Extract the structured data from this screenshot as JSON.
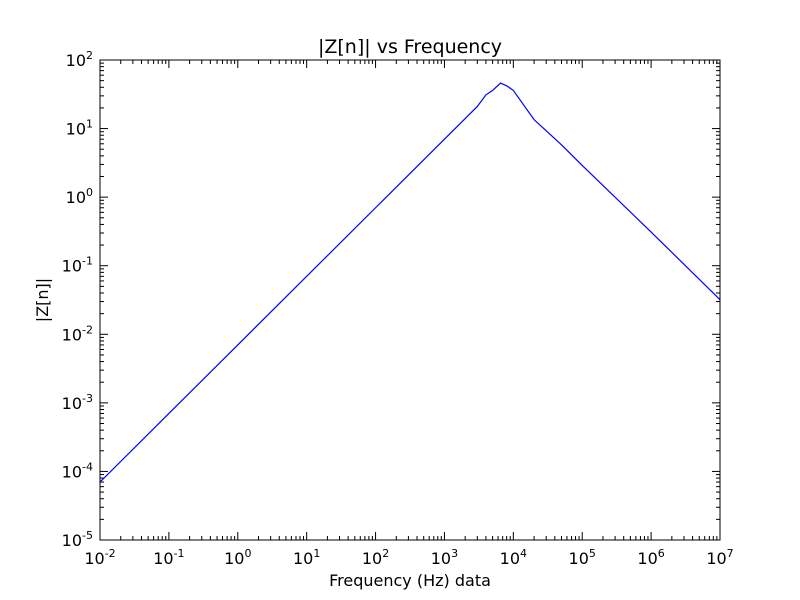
{
  "chart_data": {
    "type": "line",
    "title": "|Z[n]| vs Frequency",
    "xlabel": "Frequency (Hz) data",
    "ylabel": "|Z[n]|",
    "xscale": "log",
    "yscale": "log",
    "xlim": [
      0.01,
      10000000
    ],
    "ylim": [
      1e-05,
      100
    ],
    "grid": false,
    "x_ticks": [
      {
        "base": "10",
        "exp": "-2"
      },
      {
        "base": "10",
        "exp": "-1"
      },
      {
        "base": "10",
        "exp": "0"
      },
      {
        "base": "10",
        "exp": "1"
      },
      {
        "base": "10",
        "exp": "2"
      },
      {
        "base": "10",
        "exp": "3"
      },
      {
        "base": "10",
        "exp": "4"
      },
      {
        "base": "10",
        "exp": "5"
      },
      {
        "base": "10",
        "exp": "6"
      },
      {
        "base": "10",
        "exp": "7"
      }
    ],
    "y_ticks": [
      {
        "base": "10",
        "exp": "-5"
      },
      {
        "base": "10",
        "exp": "-4"
      },
      {
        "base": "10",
        "exp": "-3"
      },
      {
        "base": "10",
        "exp": "-2"
      },
      {
        "base": "10",
        "exp": "-1"
      },
      {
        "base": "10",
        "exp": "0"
      },
      {
        "base": "10",
        "exp": "1"
      },
      {
        "base": "10",
        "exp": "2"
      }
    ],
    "series": [
      {
        "color": "#0000ff",
        "x": [
          0.01,
          0.1,
          1,
          10,
          100,
          1000,
          2000,
          3000,
          4000,
          5000,
          6500,
          8000,
          10000,
          20000,
          50000,
          100000,
          1000000,
          10000000
        ],
        "y": [
          7e-05,
          0.0007,
          0.007,
          0.07,
          0.7,
          7,
          14,
          21,
          31,
          36,
          46,
          42,
          36,
          13.5,
          5.8,
          2.9,
          0.31,
          0.032
        ]
      }
    ]
  }
}
